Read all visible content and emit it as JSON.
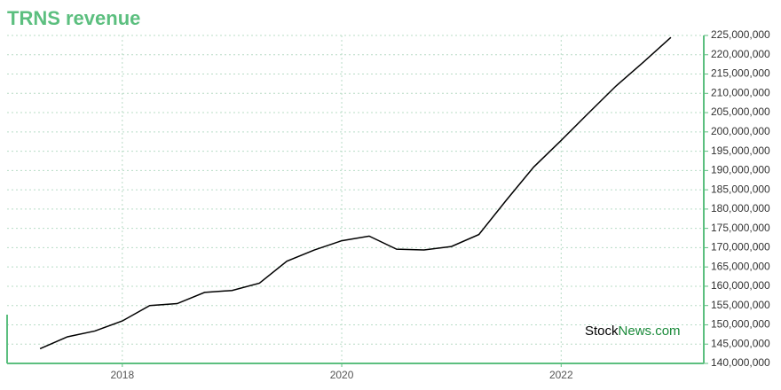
{
  "chart_data": {
    "type": "line",
    "title": "TRNS revenue",
    "x": [
      2017.25,
      2017.5,
      2017.75,
      2018.0,
      2018.25,
      2018.5,
      2018.75,
      2019.0,
      2019.25,
      2019.5,
      2019.75,
      2020.0,
      2020.25,
      2020.5,
      2020.75,
      2021.0,
      2021.25,
      2021.5,
      2021.75,
      2022.0,
      2022.25,
      2022.5,
      2022.75,
      2023.0
    ],
    "values": [
      143800000,
      146900000,
      148400000,
      151000000,
      155000000,
      155500000,
      158400000,
      158900000,
      160800000,
      166500000,
      169400000,
      171800000,
      173000000,
      169600000,
      169400000,
      170300000,
      173400000,
      182300000,
      190900000,
      197800000,
      204900000,
      211900000,
      218100000,
      224500000
    ],
    "color": "#000000",
    "xlim": [
      2016.95,
      2023.3
    ],
    "xticks": [
      2018,
      2020,
      2022
    ],
    "ylim": [
      140000000,
      225000000
    ],
    "yticks": [
      {
        "value": 140000000,
        "label": "140,000,000"
      },
      {
        "value": 145000000,
        "label": "145,000,000"
      },
      {
        "value": 150000000,
        "label": "150,000,000"
      },
      {
        "value": 155000000,
        "label": "155,000,000"
      },
      {
        "value": 160000000,
        "label": "160,000,000"
      },
      {
        "value": 165000000,
        "label": "165,000,000"
      },
      {
        "value": 170000000,
        "label": "170,000,000"
      },
      {
        "value": 175000000,
        "label": "175,000,000"
      },
      {
        "value": 180000000,
        "label": "180,000,000"
      },
      {
        "value": 185000000,
        "label": "185,000,000"
      },
      {
        "value": 190000000,
        "label": "190,000,000"
      },
      {
        "value": 195000000,
        "label": "195,000,000"
      },
      {
        "value": 200000000,
        "label": "200,000,000"
      },
      {
        "value": 205000000,
        "label": "205,000,000"
      },
      {
        "value": 210000000,
        "label": "210,000,000"
      },
      {
        "value": 215000000,
        "label": "215,000,000"
      },
      {
        "value": 220000000,
        "label": "220,000,000"
      },
      {
        "value": 225000000,
        "label": "225,000,000"
      }
    ],
    "grid": true,
    "watermark": {
      "first": "Stock",
      "second": "News.com"
    }
  }
}
